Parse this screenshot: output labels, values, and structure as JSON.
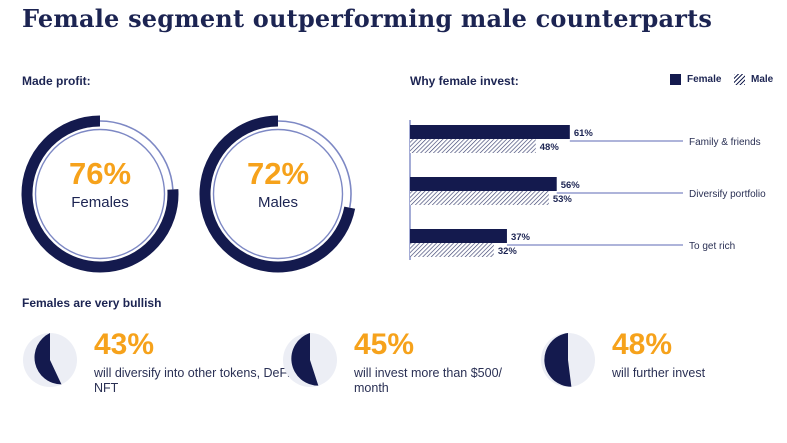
{
  "title": "Female segment outperforming male counterparts",
  "made_profit": {
    "label": "Made profit:",
    "female": {
      "pct": 76,
      "pct_text": "76%",
      "caption": "Females"
    },
    "male": {
      "pct": 72,
      "pct_text": "72%",
      "caption": "Males"
    }
  },
  "why_invest": {
    "label": "Why female invest:",
    "legend": {
      "female": "Female",
      "male": "Male"
    }
  },
  "bullish": {
    "label": "Females are very bullish",
    "items": [
      {
        "pct": 43,
        "value": "43%",
        "desc": "will diversify into other tokens, DeFi, NFT"
      },
      {
        "pct": 45,
        "value": "45%",
        "desc": "will invest more than $500/ month"
      },
      {
        "pct": 48,
        "value": "48%",
        "desc": "will further invest"
      }
    ]
  },
  "colors": {
    "navy": "#141a4e",
    "orange": "#f6a21b",
    "light_ring": "#7d88c4",
    "pie_light": "#eceef5"
  },
  "chart_data": {
    "type": "bar",
    "orientation": "horizontal",
    "categories": [
      "Family & friends",
      "Diversify portfolio",
      "To get rich"
    ],
    "series": [
      {
        "name": "Female",
        "values": [
          61,
          56,
          37
        ],
        "labels": [
          "61%",
          "56%",
          "37%"
        ]
      },
      {
        "name": "Male",
        "values": [
          48,
          53,
          32
        ],
        "labels": [
          "48%",
          "53%",
          "32%"
        ]
      }
    ],
    "xlim": [
      0,
      100
    ],
    "grid": false,
    "legend": "top-right"
  }
}
